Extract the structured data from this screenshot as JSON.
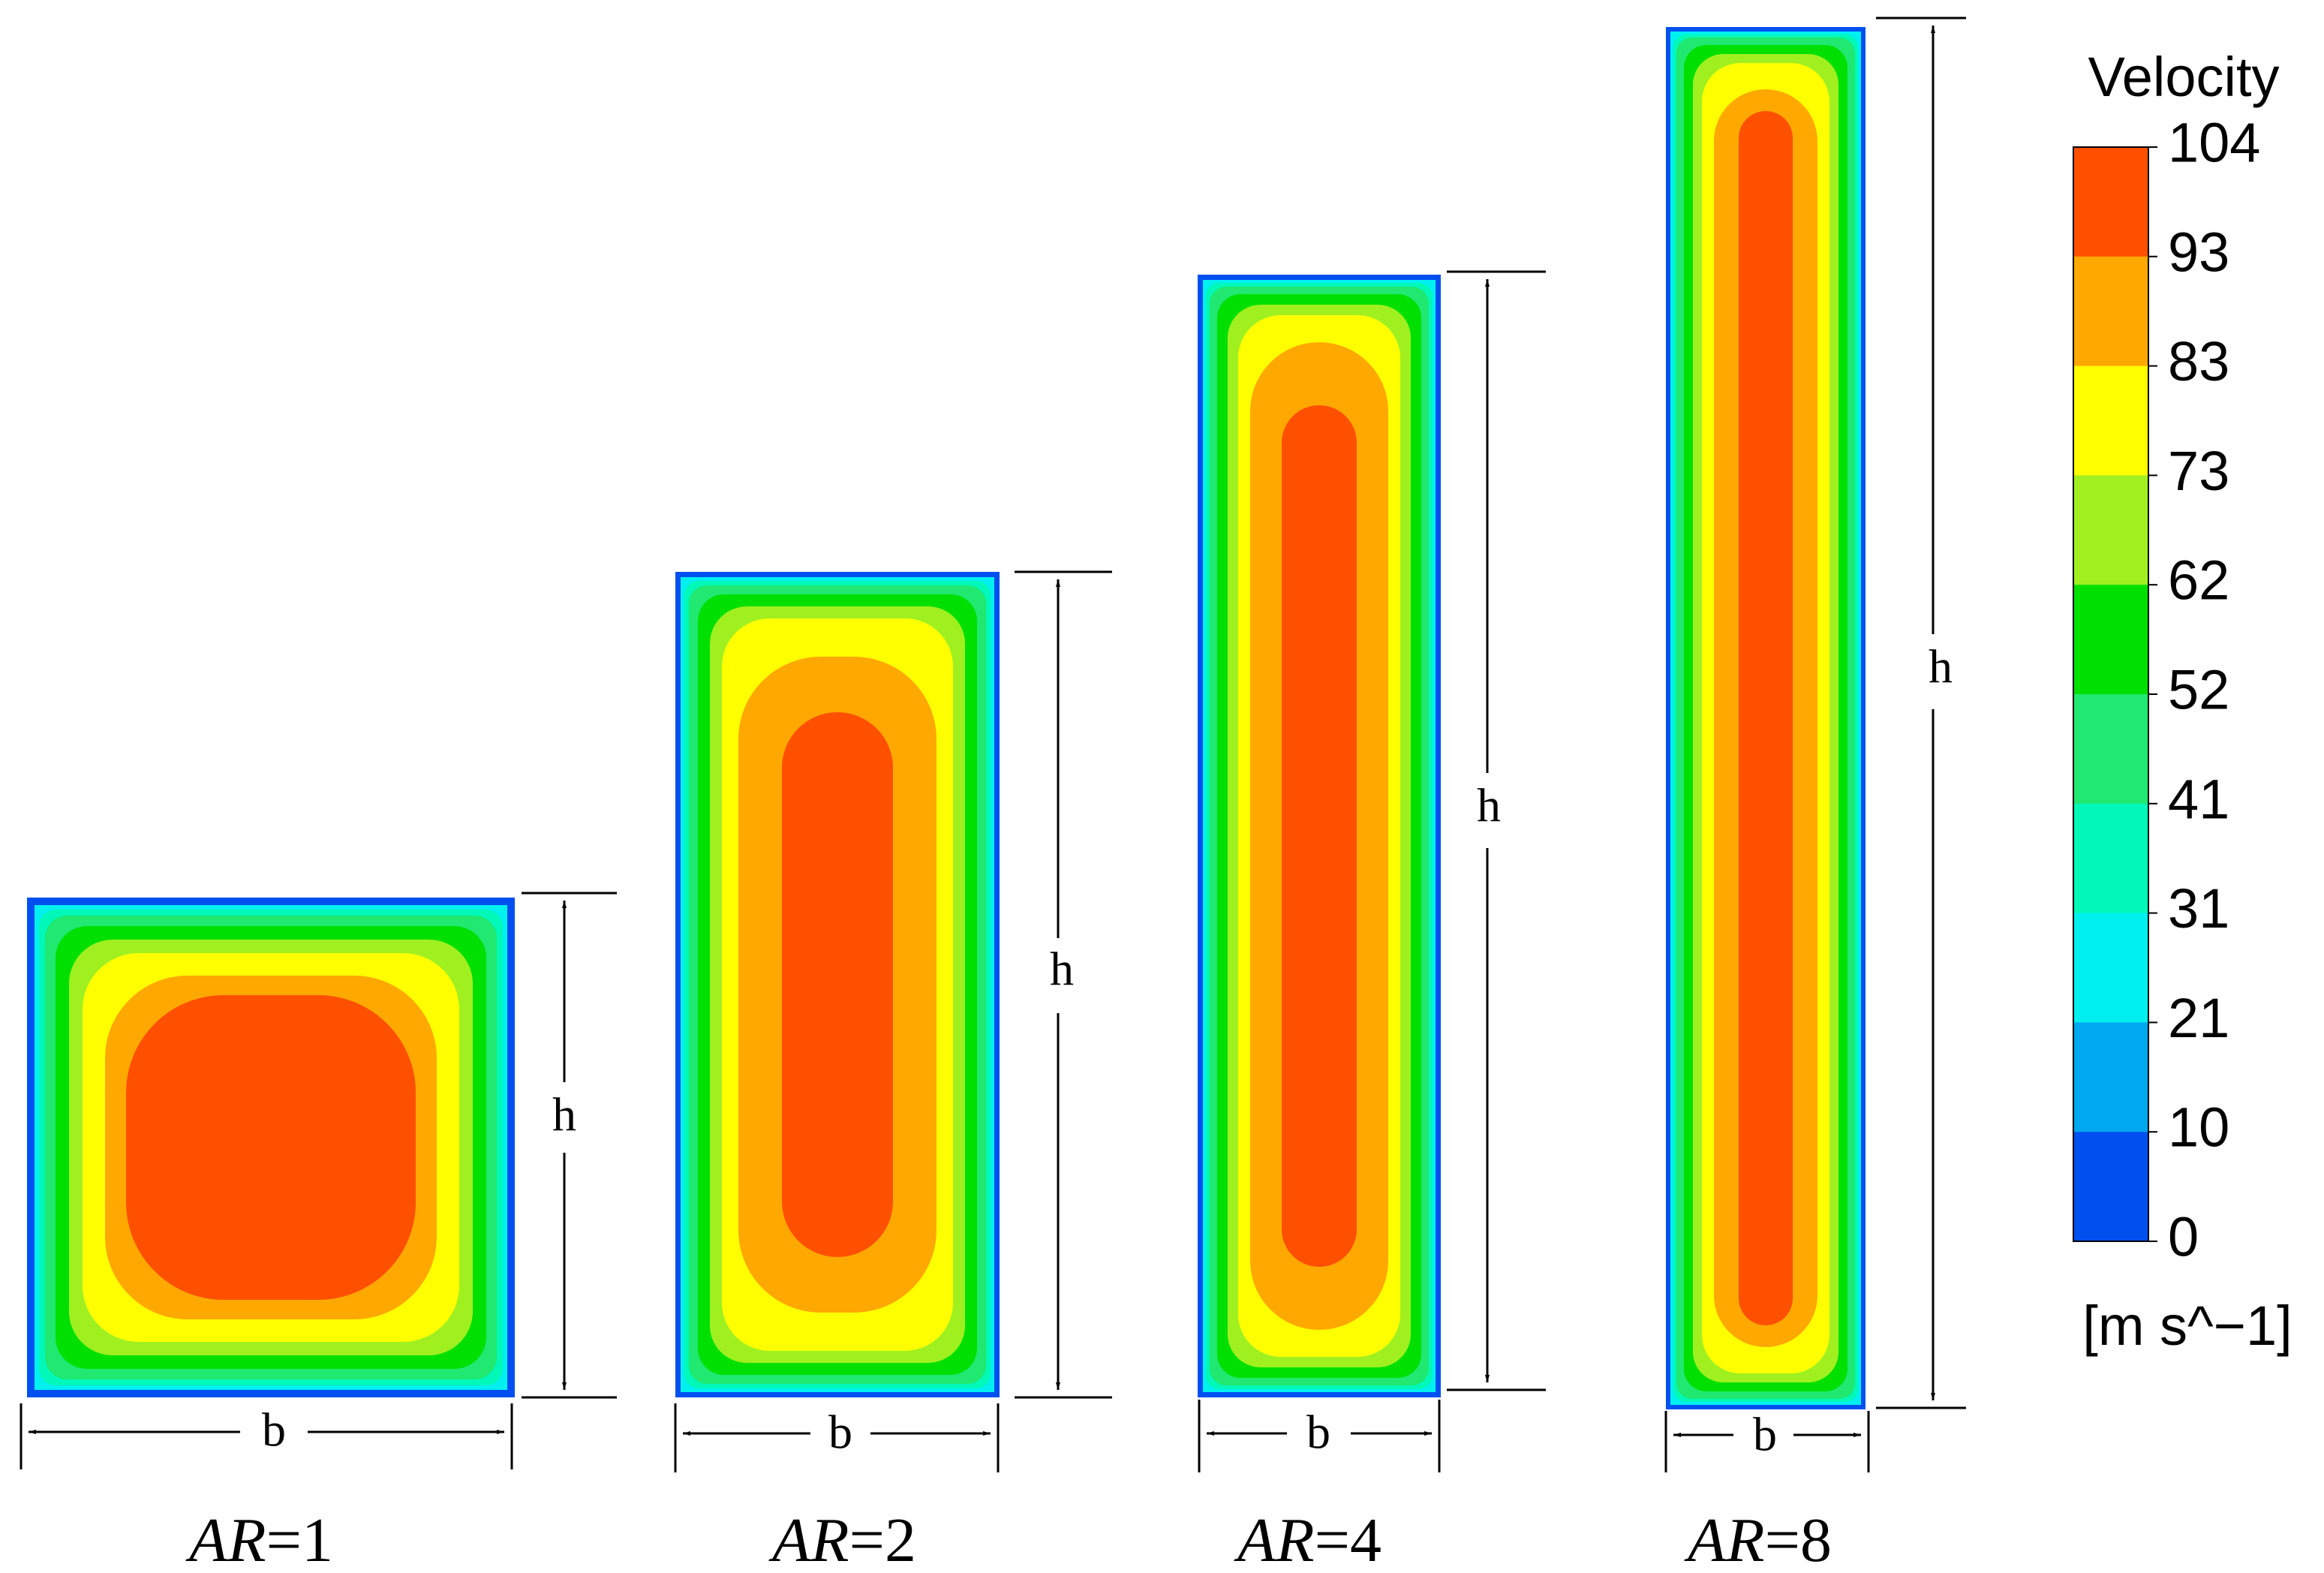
{
  "figure": {
    "cases": [
      {
        "ar_var": "AR",
        "ar_value": "=1",
        "height_label": "h",
        "width_label": "b"
      },
      {
        "ar_var": "AR",
        "ar_value": "=2",
        "height_label": "h",
        "width_label": "b"
      },
      {
        "ar_var": "AR",
        "ar_value": "=4",
        "height_label": "h",
        "width_label": "b"
      },
      {
        "ar_var": "AR",
        "ar_value": "=8",
        "height_label": "h",
        "width_label": "b"
      }
    ]
  },
  "legend": {
    "title": "Velocity",
    "unit": "[m s^−1]",
    "ticks": [
      "104",
      "93",
      "83",
      "73",
      "62",
      "52",
      "41",
      "31",
      "21",
      "10",
      "0"
    ],
    "colors": [
      "#ff5000",
      "#ffa800",
      "#ffff00",
      "#a0f020",
      "#00e000",
      "#20e870",
      "#00f8b8",
      "#00f0f0",
      "#00a8f0",
      "#0050f0"
    ],
    "contour_fill_order": [
      "#0050f0",
      "#00a8f0",
      "#00f0f0",
      "#00f8b8",
      "#20e870",
      "#00e000",
      "#a0f020",
      "#ffff00",
      "#ffa800",
      "#ff5000"
    ]
  }
}
